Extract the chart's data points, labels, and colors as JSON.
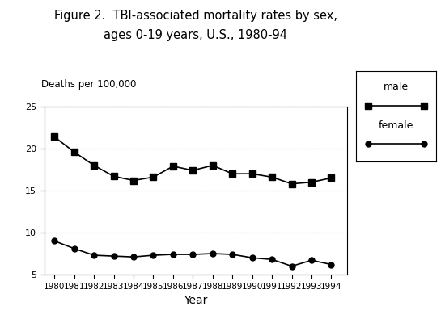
{
  "title_line1": "Figure 2.  TBI-associated mortality rates by sex,",
  "title_line2": "ages 0-19 years, U.S., 1980-94",
  "ylabel": "Deaths per 100,000",
  "xlabel": "Year",
  "years": [
    1980,
    1981,
    1982,
    1983,
    1984,
    1985,
    1986,
    1987,
    1988,
    1989,
    1990,
    1991,
    1992,
    1993,
    1994
  ],
  "male": [
    21.4,
    19.6,
    18.0,
    16.7,
    16.2,
    16.6,
    17.9,
    17.4,
    18.0,
    17.0,
    17.0,
    16.6,
    15.8,
    16.0,
    16.5
  ],
  "female": [
    9.0,
    8.1,
    7.3,
    7.2,
    7.1,
    7.3,
    7.4,
    7.4,
    7.5,
    7.4,
    7.0,
    6.8,
    6.0,
    6.7,
    6.2
  ],
  "line_color": "#000000",
  "ylim": [
    5,
    25
  ],
  "yticks": [
    5,
    10,
    15,
    20,
    25
  ],
  "grid_color": "#bbbbbb",
  "background_color": "#ffffff",
  "legend_labels": [
    "male",
    "female"
  ]
}
